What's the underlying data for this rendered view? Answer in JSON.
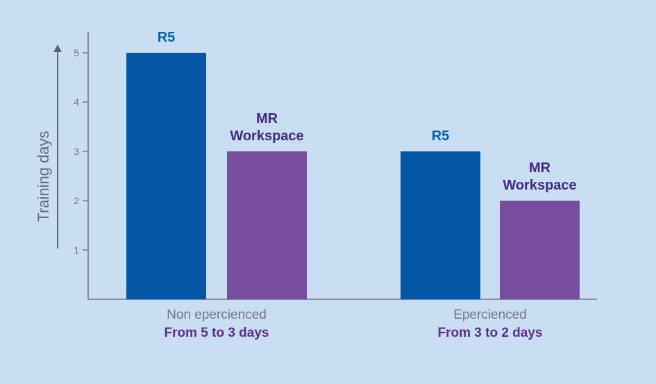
{
  "chart_data": {
    "type": "bar",
    "title": "",
    "xlabel": "",
    "ylabel": "Training days",
    "yticks": [
      1,
      2,
      3,
      4,
      5
    ],
    "ylim": [
      0,
      5.5
    ],
    "grid": false,
    "legend_position": "none",
    "categories": [
      "Non epercienced",
      "Epercienced"
    ],
    "series": [
      {
        "name": "R5",
        "values": [
          5,
          3
        ]
      },
      {
        "name": "MR Workspace",
        "values": [
          3,
          2
        ]
      }
    ],
    "groups": [
      {
        "label": "Non epercienced",
        "sublabel": "From 5 to 3 days",
        "bars": [
          {
            "name": "R5",
            "value": 5,
            "color": "#0456a4",
            "label_color": "#0061ae"
          },
          {
            "name": "MR Workspace",
            "value": 3,
            "color": "#794ca0",
            "label_color": "#42297f"
          }
        ]
      },
      {
        "label": "Epercienced",
        "sublabel": "From 3 to 2 days",
        "bars": [
          {
            "name": "R5",
            "value": 3,
            "color": "#0456a4",
            "label_color": "#0061ae"
          },
          {
            "name": "MR Workspace",
            "value": 2,
            "color": "#794ca0",
            "label_color": "#42297f"
          }
        ]
      }
    ]
  },
  "colors": {
    "background": "#c9def2",
    "axis": "#868f9a",
    "arrow": "#58636f",
    "axis_title": "#5d6b7a",
    "tick_label": "#6a7480",
    "category_label": "#6e7884",
    "sublabel": "#5c2d87",
    "bar_r5": "#0456a4",
    "bar_mr_workspace": "#794ca0",
    "label_r5": "#0061ae",
    "label_mr_workspace": "#42297f"
  }
}
